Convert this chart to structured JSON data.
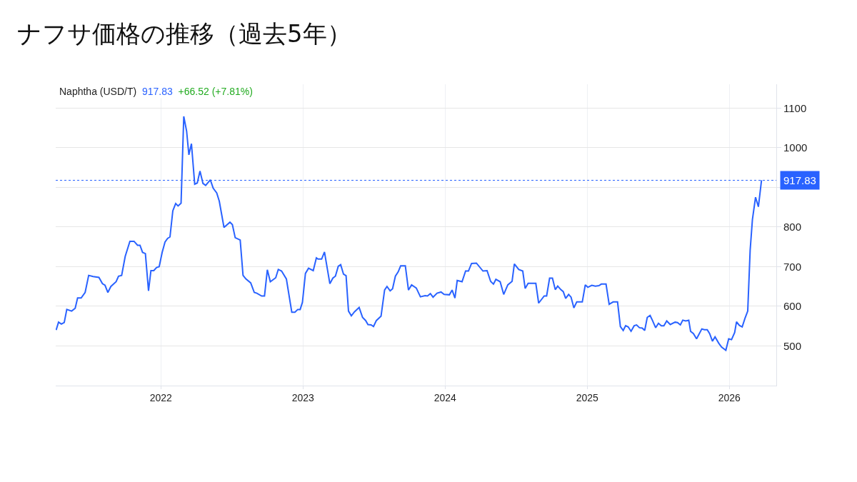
{
  "chart_data": {
    "type": "line",
    "title": "ナフサ価格の推移（過去5年）",
    "annotations": [
      "Naphtha (USD/T)",
      "917.83",
      "+66.52 (+7.81%)"
    ],
    "x": [
      2021.263,
      2021.28,
      2021.3,
      2021.32,
      2021.338,
      2021.372,
      2021.397,
      2021.414,
      2021.439,
      2021.467,
      2021.492,
      2021.523,
      2021.564,
      2021.589,
      2021.607,
      2021.627,
      2021.648,
      2021.685,
      2021.702,
      2021.724,
      2021.749,
      2021.782,
      2021.811,
      2021.836,
      2021.853,
      2021.871,
      2021.891,
      2021.913,
      2021.93,
      2021.95,
      2021.97,
      2021.988,
      2022.009,
      2022.029,
      2022.047,
      2022.064,
      2022.084,
      2022.104,
      2022.121,
      2022.142,
      2022.161,
      2022.181,
      2022.197,
      2022.215,
      2022.238,
      2022.256,
      2022.275,
      2022.296,
      2022.315,
      2022.348,
      2022.368,
      2022.393,
      2022.411,
      2022.444,
      2022.486,
      2022.503,
      2022.523,
      2022.558,
      2022.578,
      2022.598,
      2022.632,
      2022.657,
      2022.675,
      2022.709,
      2022.729,
      2022.749,
      2022.77,
      2022.808,
      2022.826,
      2022.849,
      2022.883,
      2022.921,
      2022.943,
      2022.963,
      2022.98,
      2022.996,
      2023.017,
      2023.039,
      2023.072,
      2023.094,
      2023.106,
      2023.131,
      2023.151,
      2023.189,
      2023.21,
      2023.228,
      2023.248,
      2023.265,
      2023.285,
      2023.303,
      2023.32,
      2023.34,
      2023.362,
      2023.395,
      2023.419,
      2023.441,
      2023.457,
      2023.479,
      2023.496,
      2023.516,
      2023.549,
      2023.574,
      2023.591,
      2023.613,
      2023.63,
      2023.65,
      2023.67,
      2023.687,
      2023.72,
      2023.742,
      2023.764,
      2023.797,
      2023.826,
      2023.859,
      2023.876,
      2023.896,
      2023.915,
      2023.943,
      2023.971,
      2023.993,
      2024.03,
      2024.049,
      2024.069,
      2024.085,
      2024.119,
      2024.144,
      2024.164,
      2024.186,
      2024.22,
      2024.266,
      2024.295,
      2024.32,
      2024.34,
      2024.357,
      2024.387,
      2024.412,
      2024.441,
      2024.471,
      2024.487,
      2024.518,
      2024.546,
      2024.563,
      2024.584,
      2024.638,
      2024.658,
      2024.697,
      2024.714,
      2024.735,
      2024.755,
      2024.775,
      2024.792,
      2024.814,
      2024.831,
      2024.848,
      2024.869,
      2024.886,
      2024.906,
      2024.926,
      2024.965,
      2024.986,
      2025.004,
      2025.032,
      2025.057,
      2025.082,
      2025.099,
      2025.132,
      2025.154,
      2025.182,
      2025.213,
      2025.233,
      2025.253,
      2025.27,
      2025.288,
      2025.308,
      2025.33,
      2025.347,
      2025.367,
      2025.387,
      2025.404,
      2025.422,
      2025.442,
      2025.459,
      2025.481,
      2025.501,
      2025.521,
      2025.539,
      2025.559,
      2025.584,
      2025.618,
      2025.635,
      2025.655,
      2025.672,
      2025.693,
      2025.714,
      2025.727,
      2025.747,
      2025.769,
      2025.806,
      2025.824,
      2025.844,
      2025.861,
      2025.881,
      2025.899,
      2025.925,
      2025.945,
      2025.975,
      2025.995,
      2026.015,
      2026.037,
      2026.05,
      2026.07,
      2026.09,
      2026.109,
      2026.129,
      2026.146,
      2026.162,
      2026.184,
      2026.204,
      2026.226
    ],
    "series": [
      {
        "color": "#2962ff",
        "values": [
          540,
          560,
          555,
          559,
          592,
          588,
          595,
          621,
          621,
          635,
          678,
          675,
          673,
          657,
          653,
          635,
          650,
          662,
          676,
          678,
          726,
          764,
          764,
          754,
          754,
          736,
          733,
          639,
          690,
          690,
          698,
          700,
          736,
          762,
          771,
          775,
          841,
          859,
          853,
          860,
          1079,
          1042,
          982,
          1010,
          908,
          911,
          941,
          910,
          905,
          919,
          898,
          886,
          865,
          799,
          812,
          806,
          773,
          767,
          678,
          669,
          659,
          635,
          633,
          626,
          626,
          692,
          662,
          672,
          693,
          689,
          669,
          585,
          585,
          592,
          592,
          610,
          683,
          696,
          690,
          722,
          719,
          719,
          737,
          657,
          671,
          676,
          701,
          705,
          681,
          677,
          588,
          576,
          586,
          597,
          572,
          564,
          554,
          553,
          549,
          564,
          575,
          641,
          650,
          639,
          644,
          676,
          687,
          702,
          702,
          641,
          654,
          646,
          624,
          627,
          626,
          632,
          623,
          633,
          636,
          630,
          629,
          641,
          621,
          665,
          662,
          689,
          689,
          708,
          709,
          689,
          690,
          663,
          656,
          668,
          662,
          630,
          654,
          663,
          707,
          693,
          689,
          645,
          658,
          658,
          608,
          626,
          626,
          671,
          671,
          642,
          651,
          642,
          637,
          620,
          630,
          623,
          596,
          611,
          611,
          654,
          648,
          653,
          651,
          652,
          656,
          656,
          605,
          611,
          611,
          549,
          539,
          551,
          548,
          537,
          551,
          553,
          546,
          545,
          539,
          572,
          577,
          564,
          546,
          557,
          551,
          551,
          563,
          554,
          560,
          559,
          553,
          565,
          563,
          565,
          537,
          531,
          518,
          543,
          541,
          541,
          531,
          512,
          523,
          507,
          497,
          489,
          518,
          516,
          534,
          561,
          552,
          548,
          569,
          588,
          741,
          819,
          875,
          851,
          917.83
        ]
      }
    ],
    "xlim": [
      2021.26,
      2026.33
    ],
    "xticks": [
      2022,
      2023,
      2024,
      2025,
      2026
    ],
    "ylim": [
      400,
      1160
    ],
    "yticks": [
      500,
      600,
      700,
      800,
      {
        "value": 900,
        "label": null
      },
      1000,
      1100
    ],
    "ref_lines": [
      {
        "axis": "y",
        "value": 917.83,
        "label": "917.83",
        "color": "#2962ff",
        "line_style": "dotted"
      }
    ],
    "grid": true,
    "legend": false,
    "marker": "none",
    "line_style": "solid"
  }
}
